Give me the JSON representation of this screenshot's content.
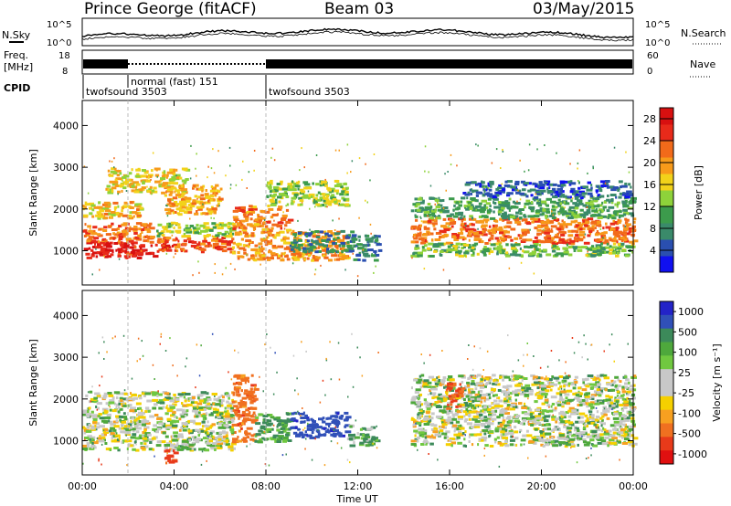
{
  "header": {
    "station": "Prince George (fitACF)",
    "beam": "Beam 03",
    "date": "03/May/2015"
  },
  "strips": {
    "nsky_label": "N.Sky",
    "nsearch_label": "N.Search",
    "freq_label_line1": "Freq.",
    "freq_label_line2": "[MHz]",
    "nave_label": "Nave",
    "cpid_label": "CPID",
    "nsky_ticks": [
      "10^5",
      "10^0"
    ],
    "nsearch_ticks": [
      "10^5",
      "10^0"
    ],
    "freq_ticks": [
      "18",
      "8"
    ],
    "nave_ticks": [
      "60",
      "0"
    ],
    "cpid_segments": [
      {
        "label": "twofsound 3503",
        "start_hour": 0
      },
      {
        "label": "normal (fast) 151",
        "start_hour": 2
      },
      {
        "label": "twofsound 3503",
        "start_hour": 8
      }
    ]
  },
  "axes": {
    "xlabel": "Time UT",
    "x_ticks": [
      "00:00",
      "04:00",
      "08:00",
      "12:00",
      "16:00",
      "20:00",
      "00:00"
    ],
    "ylabel": "Slant Range [km]",
    "y_ticks": [
      "1000",
      "2000",
      "3000",
      "4000"
    ]
  },
  "power_colorbar": {
    "label": "Power [dB]",
    "ticks": [
      "4",
      "8",
      "12",
      "16",
      "20",
      "24",
      "28"
    ],
    "colors": [
      "#1010f0",
      "#2a4fb0",
      "#3a8a6a",
      "#3c9b4c",
      "#8ed23a",
      "#f2d21a",
      "#f79a1a",
      "#f26a1a",
      "#e82a1a",
      "#d81010"
    ]
  },
  "velocity_colorbar": {
    "label": "Velocity [m s⁻¹]",
    "ticks": [
      "1000",
      "500",
      "100",
      "25",
      "-25",
      "-100",
      "-500",
      "-1000"
    ],
    "colors": [
      "#2323c8",
      "#3050b8",
      "#3c8a5a",
      "#4ea83c",
      "#70c840",
      "#c8c8c8",
      "#c8c8c8",
      "#f5d000",
      "#f7a020",
      "#f07020",
      "#e83a1a",
      "#e01010"
    ]
  },
  "chart_data": [
    {
      "type": "heatmap",
      "title": "Power",
      "xlabel": "Time UT",
      "ylabel": "Slant Range [km]",
      "xlim": [
        0,
        24
      ],
      "ylim": [
        180,
        4600
      ],
      "colorbar_label": "Power [dB]",
      "colorbar_range": [
        0,
        30
      ],
      "bands": [
        {
          "t0": 0,
          "t1": 3.2,
          "r0": 850,
          "r1": 1250,
          "v": 27
        },
        {
          "t0": 0,
          "t1": 3.0,
          "r0": 1250,
          "r1": 1700,
          "v": 22
        },
        {
          "t0": 0,
          "t1": 2.5,
          "r0": 1800,
          "r1": 2200,
          "v": 18
        },
        {
          "t0": 3.2,
          "t1": 6.5,
          "r0": 1000,
          "r1": 1350,
          "v": 24
        },
        {
          "t0": 3.2,
          "t1": 6.5,
          "r0": 1350,
          "r1": 1700,
          "v": 14
        },
        {
          "t0": 3.5,
          "t1": 6.0,
          "r0": 1900,
          "r1": 2600,
          "v": 19
        },
        {
          "t0": 1.0,
          "t1": 4.5,
          "r0": 2400,
          "r1": 3000,
          "v": 17
        },
        {
          "t0": 6.5,
          "t1": 11.5,
          "r0": 800,
          "r1": 1500,
          "v": 20
        },
        {
          "t0": 6.5,
          "t1": 9.0,
          "r0": 1500,
          "r1": 2100,
          "v": 21
        },
        {
          "t0": 8.0,
          "t1": 11.5,
          "r0": 2100,
          "r1": 2700,
          "v": 14
        },
        {
          "t0": 9.0,
          "t1": 11.8,
          "r0": 1000,
          "r1": 1500,
          "v": 7
        },
        {
          "t0": 11.8,
          "t1": 12.9,
          "r0": 800,
          "r1": 1400,
          "v": 8
        },
        {
          "t0": 14.3,
          "t1": 24.0,
          "r0": 1200,
          "r1": 1800,
          "v": 22
        },
        {
          "t0": 14.3,
          "t1": 24.0,
          "r0": 900,
          "r1": 1200,
          "v": 12
        },
        {
          "t0": 14.3,
          "t1": 24.0,
          "r0": 1800,
          "r1": 2300,
          "v": 10
        },
        {
          "t0": 16.5,
          "t1": 24.0,
          "r0": 2300,
          "r1": 2700,
          "v": 5
        }
      ]
    },
    {
      "type": "heatmap",
      "title": "Velocity",
      "xlabel": "Time UT",
      "ylabel": "Slant Range [km]",
      "xlim": [
        0,
        24
      ],
      "ylim": [
        180,
        4600
      ],
      "colorbar_label": "Velocity [m s⁻¹]",
      "colorbar_range": [
        -1000,
        1000
      ],
      "bands": [
        {
          "t0": 0,
          "t1": 6.5,
          "r0": 800,
          "r1": 2200,
          "v": 0
        },
        {
          "t0": 3.5,
          "t1": 4.0,
          "r0": 500,
          "r1": 800,
          "v": -600
        },
        {
          "t0": 6.5,
          "t1": 7.5,
          "r0": 1000,
          "r1": 2600,
          "v": -400
        },
        {
          "t0": 7.5,
          "t1": 9.0,
          "r0": 1000,
          "r1": 1700,
          "v": 150
        },
        {
          "t0": 9.0,
          "t1": 11.5,
          "r0": 1100,
          "r1": 1700,
          "v": 900
        },
        {
          "t0": 11.5,
          "t1": 12.8,
          "r0": 900,
          "r1": 1400,
          "v": 80
        },
        {
          "t0": 14.3,
          "t1": 24.0,
          "r0": 900,
          "r1": 2600,
          "v": 0
        },
        {
          "t0": 15.8,
          "t1": 16.5,
          "r0": 1800,
          "r1": 2400,
          "v": -500
        }
      ]
    }
  ]
}
